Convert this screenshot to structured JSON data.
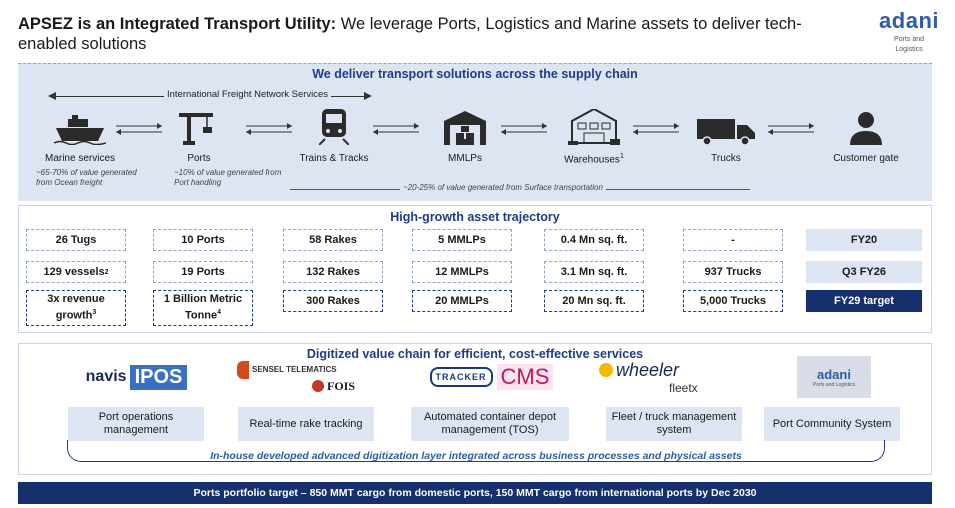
{
  "header": {
    "title_bold": "APSEZ is an Integrated Transport Utility:",
    "title_rest": " We leverage Ports, Logistics and Marine assets to deliver tech-enabled solutions",
    "logo_word": "adani",
    "logo_sub1": "Ports and",
    "logo_sub2": "Logistics"
  },
  "supply_chain": {
    "title": "We deliver transport solutions across the supply chain",
    "network_label": "International Freight Network Services",
    "nodes": [
      {
        "label": "Marine services",
        "icon": "ship-icon"
      },
      {
        "label": "Ports",
        "icon": "port-crane-icon"
      },
      {
        "label": "Trains & Tracks",
        "icon": "train-icon"
      },
      {
        "label": "MMLPs",
        "icon": "warehouse-icon"
      },
      {
        "label": "Warehouses",
        "sup": "1",
        "icon": "warehouse-building-icon"
      },
      {
        "label": "Trucks",
        "icon": "truck-icon"
      },
      {
        "label": "Customer gate",
        "icon": "person-icon"
      }
    ],
    "note_marine": "~65-70% of value generated from Ocean freight",
    "note_ports": "~10% of value generated from Port handling",
    "note_surface": "~20-25% of value generated from Surface transportation"
  },
  "trajectory": {
    "title": "High-growth asset trajectory",
    "columns": [
      {
        "fy20": "26 Tugs",
        "q3": "129 vessels",
        "q3_sup": "2",
        "fy29": "3x revenue growth",
        "fy29_sup": "3"
      },
      {
        "fy20": "10 Ports",
        "q3": "19 Ports",
        "fy29": "1 Billion Metric Tonne",
        "fy29_sup": "4"
      },
      {
        "fy20": "58 Rakes",
        "q3": "132 Rakes",
        "fy29": "300 Rakes"
      },
      {
        "fy20": "5 MMLPs",
        "q3": "12 MMLPs",
        "fy29": "20 MMLPs"
      },
      {
        "fy20": "0.4 Mn sq. ft.",
        "q3": "3.1 Mn sq. ft.",
        "fy29": "20 Mn sq. ft."
      },
      {
        "fy20": "-",
        "q3": "937 Trucks",
        "fy29": "5,000 Trucks"
      }
    ],
    "years": [
      "FY20",
      "Q3 FY26",
      "FY29 target"
    ]
  },
  "digital": {
    "title": "Digitized value chain for efficient, cost-effective services",
    "logos": {
      "navis": "navis",
      "ipos": "IPOS",
      "sensel": "SENSEL TELEMATICS",
      "fois": "FOIS",
      "tracker": "TRACKER",
      "cms": "CMS",
      "wheeler": "wheeler",
      "fleetx": "fleetx",
      "adani_pcs": "adani",
      "adani_pcs_sub": "Ports and Logistics"
    },
    "items": [
      "Port operations management",
      "Real-time rake tracking",
      "Automated container depot management (TOS)",
      "Fleet / truck management system",
      "Port Community System"
    ],
    "inhouse": "In-house developed advanced digitization layer integrated across business processes and physical assets"
  },
  "footer": "Ports portfolio target – 850 MMT cargo from domestic ports, 150 MMT cargo from international ports by Dec 2030",
  "colors": {
    "navy": "#16306e",
    "panel": "#dde5f3",
    "accent": "#2d5ca8"
  }
}
